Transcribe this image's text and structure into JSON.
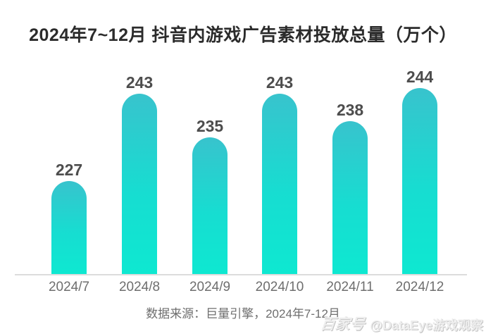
{
  "chart_data": {
    "type": "bar",
    "title": "2024年7~12月 抖音内游戏广告素材投放总量（万个）",
    "categories": [
      "2024/7",
      "2024/8",
      "2024/9",
      "2024/10",
      "2024/11",
      "2024/12"
    ],
    "values": [
      227,
      243,
      235,
      243,
      238,
      244
    ],
    "xlabel": "",
    "ylabel": "",
    "ylim": [
      210,
      250
    ],
    "grid": false,
    "legend": "none",
    "value_labels_shown": true,
    "bar_color_top": "#38c3cd",
    "bar_color_bottom": "#0ee8d1",
    "axis_line_color": "#dcdcdc"
  },
  "footer": {
    "source_text": "数据来源：巨量引擎，2024年7-12月"
  },
  "watermark": {
    "logo_text": "百家号",
    "account": "@DataEye游戏观察"
  }
}
